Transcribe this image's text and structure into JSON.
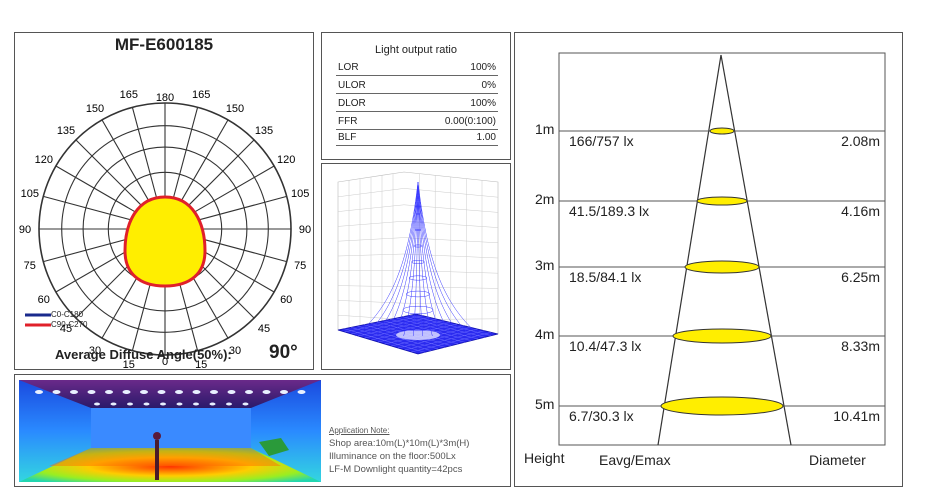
{
  "polar": {
    "model": "MF-E600185",
    "angle_labels_left": [
      "165",
      "150",
      "135",
      "120",
      "105",
      "90",
      "75",
      "60",
      "45",
      "30",
      "15"
    ],
    "angle_labels_right": [
      "165",
      "150",
      "135",
      "120",
      "105",
      "90",
      "75",
      "60",
      "45",
      "30",
      "15"
    ],
    "angle_top": "180",
    "angle_bottom": "0",
    "legend": [
      {
        "name": "C0-C180",
        "color": "#1a2a8c"
      },
      {
        "name": "C90-C270",
        "color": "#e0202a"
      }
    ],
    "diffuse_label": "Average Diffuse Angle(50%):",
    "diffuse_value": "90°"
  },
  "ratio": {
    "title": "Light output ratio",
    "rows": [
      {
        "key": "LOR",
        "value": "100%"
      },
      {
        "key": "ULOR",
        "value": "0%"
      },
      {
        "key": "DLOR",
        "value": "100%"
      },
      {
        "key": "FFR",
        "value": "0.00(0:100)"
      },
      {
        "key": "BLF",
        "value": "1.00"
      }
    ]
  },
  "cone": {
    "rows": [
      {
        "height": "1m",
        "eavg": "166/757 lx",
        "diameter": "2.08m"
      },
      {
        "height": "2m",
        "eavg": "41.5/189.3 lx",
        "diameter": "4.16m"
      },
      {
        "height": "3m",
        "eavg": "18.5/84.1 lx",
        "diameter": "6.25m"
      },
      {
        "height": "4m",
        "eavg": "10.4/47.3 lx",
        "diameter": "8.33m"
      },
      {
        "height": "5m",
        "eavg": "6.7/30.3 lx",
        "diameter": "10.41m"
      }
    ],
    "footer_height": "Height",
    "footer_eavg": "Eavg/Emax",
    "footer_diameter": "Diameter"
  },
  "application": {
    "title": "Application Note:",
    "lines": [
      "Shop area:10m(L)*10m(L)*3m(H)",
      "Illuminance on the floor:500Lx",
      "LF-M Downlight quantity=42pcs"
    ]
  },
  "colors": {
    "fill_yellow": "#ffee00",
    "line_red": "#e0202a",
    "line_blue": "#1a2a8c",
    "mesh_blue": "#3a3aff"
  }
}
